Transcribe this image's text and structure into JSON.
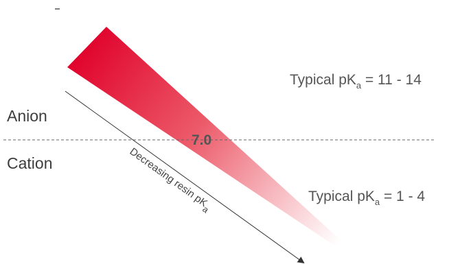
{
  "regions": {
    "anion": "Anion",
    "cation": "Cation"
  },
  "pka_labels": {
    "top": {
      "prefix": "Typical pK",
      "subscript": "a",
      "suffix": " = 11 - 14"
    },
    "bottom": {
      "prefix": "Typical pK",
      "subscript": "a",
      "suffix": " = 1 - 4"
    }
  },
  "center_value": "7.0",
  "arrow_caption": {
    "prefix": "Decreasing resin pK",
    "subscript": "a"
  },
  "colors": {
    "wedge_start": "#e0002a",
    "wedge_end": "#ffffff",
    "divider": "#666666",
    "arrow": "#333333",
    "text": "#4d4d4d"
  },
  "icons": {
    "arrow": "down-right-arrow-icon"
  }
}
